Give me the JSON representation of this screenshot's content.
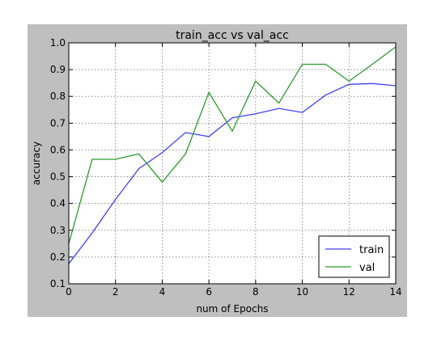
{
  "chart_data": {
    "type": "line",
    "title": "train_acc vs val_acc",
    "xlabel": "num of Epochs",
    "ylabel": "accuracy",
    "xlim": [
      0,
      14
    ],
    "ylim": [
      0.1,
      1.0
    ],
    "xticks": [
      0,
      2,
      4,
      6,
      8,
      10,
      12,
      14
    ],
    "yticks": [
      0.1,
      0.2,
      0.3,
      0.4,
      0.5,
      0.6,
      0.7,
      0.8,
      0.9,
      1.0
    ],
    "grid": true,
    "legend_position": "bottom-right",
    "x": [
      0,
      1,
      2,
      3,
      4,
      5,
      6,
      7,
      8,
      9,
      10,
      11,
      12,
      13,
      14
    ],
    "series": [
      {
        "name": "train",
        "color": "#4040ff",
        "values": [
          0.175,
          0.29,
          0.415,
          0.53,
          0.59,
          0.665,
          0.65,
          0.72,
          0.735,
          0.755,
          0.74,
          0.805,
          0.845,
          0.848,
          0.84
        ]
      },
      {
        "name": "val",
        "color": "#2e9a2e",
        "values": [
          0.25,
          0.565,
          0.565,
          0.585,
          0.48,
          0.585,
          0.815,
          0.67,
          0.857,
          0.775,
          0.92,
          0.92,
          0.857,
          0.92,
          0.985
        ]
      }
    ]
  }
}
